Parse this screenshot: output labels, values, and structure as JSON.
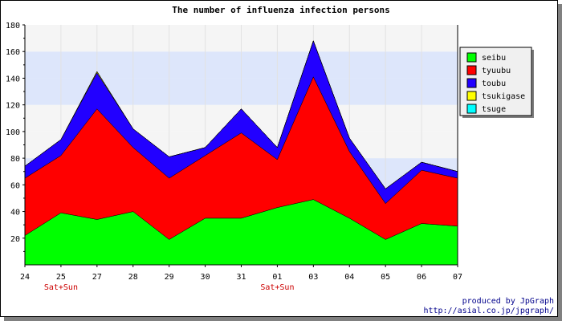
{
  "chart_data": {
    "type": "area",
    "stacked": true,
    "title": "The number of influenza infection persons",
    "categories": [
      "24",
      "25",
      "27",
      "28",
      "29",
      "30",
      "31",
      "01",
      "03",
      "04",
      "05",
      "06",
      "07"
    ],
    "weekend_marks": [
      {
        "category": "25",
        "label": "Sat+Sun"
      },
      {
        "category": "01",
        "label": "Sat+Sun"
      }
    ],
    "ylim": [
      0,
      180
    ],
    "yticks": [
      20,
      40,
      60,
      80,
      100,
      120,
      140,
      160,
      180
    ],
    "legend_position": "right",
    "series": [
      {
        "name": "seibu",
        "color": "#00ff00",
        "values": [
          22,
          39,
          34,
          40,
          19,
          35,
          35,
          43,
          49,
          35,
          19,
          31,
          29
        ]
      },
      {
        "name": "tyuubu",
        "color": "#ff0000",
        "values": [
          43,
          43,
          83,
          48,
          46,
          47,
          64,
          36,
          92,
          50,
          27,
          40,
          36
        ]
      },
      {
        "name": "toubu",
        "color": "#2200ff",
        "values": [
          9,
          12,
          27,
          14,
          16,
          6,
          18,
          9,
          27,
          10,
          11,
          6,
          5
        ]
      },
      {
        "name": "tsukigase",
        "color": "#ffff00",
        "values": [
          0,
          0,
          1,
          0,
          0,
          0,
          0,
          0,
          0,
          0,
          0,
          0,
          0
        ]
      },
      {
        "name": "tsuge",
        "color": "#00ffff",
        "values": [
          0,
          0,
          0,
          0,
          0,
          0,
          0,
          0,
          0,
          0,
          0,
          0,
          0
        ]
      }
    ]
  },
  "credits": {
    "line1": "produced by JpGraph",
    "line2": "http://asial.co.jp/jpgraph/"
  }
}
